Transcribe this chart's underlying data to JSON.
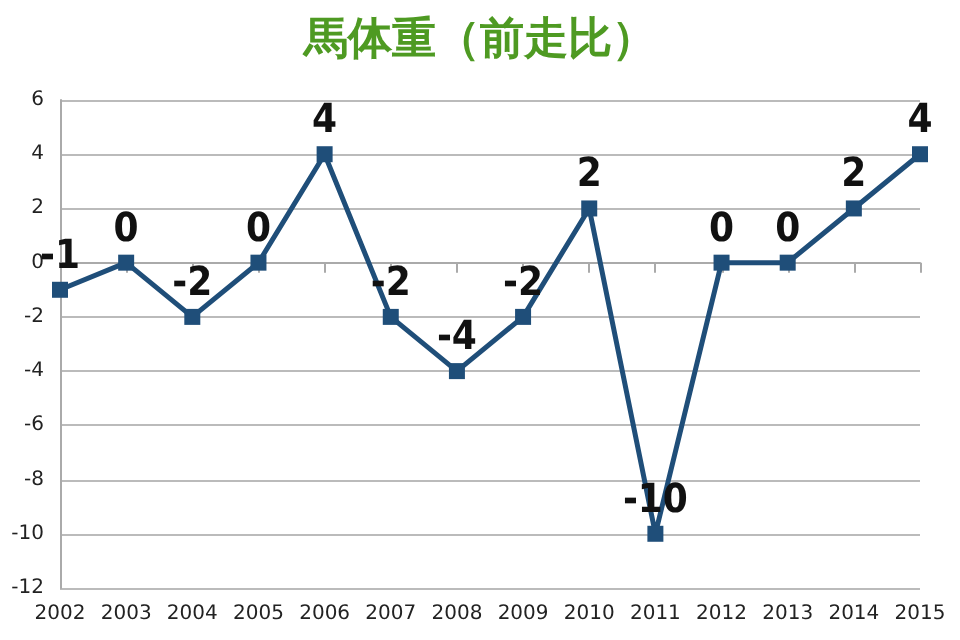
{
  "chart_data": {
    "type": "line",
    "title": "馬体重（前走比）",
    "categories": [
      "2002",
      "2003",
      "2004",
      "2005",
      "2006",
      "2007",
      "2008",
      "2009",
      "2010",
      "2011",
      "2012",
      "2013",
      "2014",
      "2015"
    ],
    "series": [
      {
        "color": "#1f4e79",
        "values": [
          -1,
          0,
          -2,
          0,
          4,
          -2,
          -4,
          -2,
          2,
          -10,
          0,
          0,
          2,
          4
        ]
      }
    ],
    "ylim": [
      -12,
      6
    ],
    "yticks": [
      -12,
      -10,
      -8,
      -6,
      -4,
      -2,
      0,
      2,
      4,
      6
    ],
    "grid": "y",
    "marker": "square",
    "data_labels": true
  }
}
